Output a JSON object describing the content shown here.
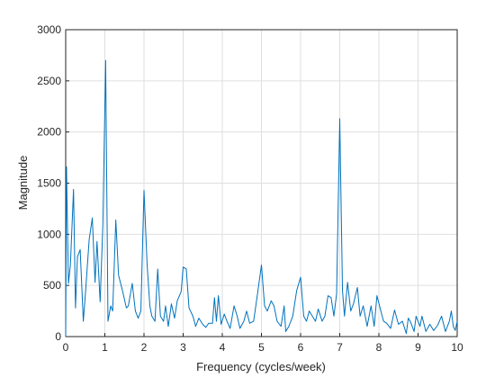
{
  "chart_data": {
    "type": "line",
    "x_label": "Frequency (cycles/week)",
    "y_label": "Magnitude",
    "xlim": [
      0,
      10
    ],
    "ylim": [
      0,
      3000
    ],
    "xticks": [
      0,
      1,
      2,
      3,
      4,
      5,
      6,
      7,
      8,
      9,
      10
    ],
    "yticks": [
      0,
      500,
      1000,
      1500,
      2000,
      2500,
      3000
    ],
    "grid": true,
    "x": [
      0,
      0.02,
      0.07,
      0.12,
      0.2,
      0.25,
      0.3,
      0.37,
      0.45,
      0.5,
      0.6,
      0.68,
      0.75,
      0.8,
      0.88,
      0.95,
      1.02,
      1.08,
      1.15,
      1.2,
      1.28,
      1.35,
      1.45,
      1.55,
      1.6,
      1.7,
      1.78,
      1.85,
      1.92,
      2.0,
      2.08,
      2.15,
      2.2,
      2.28,
      2.35,
      2.42,
      2.5,
      2.55,
      2.62,
      2.7,
      2.78,
      2.85,
      2.95,
      3.0,
      3.08,
      3.15,
      3.25,
      3.32,
      3.4,
      3.5,
      3.58,
      3.65,
      3.7,
      3.75,
      3.8,
      3.85,
      3.9,
      3.97,
      4.05,
      4.12,
      4.2,
      4.3,
      4.38,
      4.45,
      4.55,
      4.62,
      4.7,
      4.8,
      4.9,
      5.0,
      5.08,
      5.15,
      5.25,
      5.32,
      5.4,
      5.5,
      5.58,
      5.62,
      5.7,
      5.8,
      5.9,
      6.0,
      6.08,
      6.15,
      6.22,
      6.3,
      6.38,
      6.45,
      6.55,
      6.62,
      6.7,
      6.78,
      6.85,
      6.92,
      7.0,
      7.07,
      7.12,
      7.2,
      7.28,
      7.35,
      7.45,
      7.52,
      7.6,
      7.7,
      7.8,
      7.88,
      7.95,
      8.05,
      8.12,
      8.2,
      8.3,
      8.4,
      8.5,
      8.6,
      8.7,
      8.75,
      8.8,
      8.9,
      8.95,
      9.05,
      9.1,
      9.2,
      9.3,
      9.4,
      9.5,
      9.6,
      9.7,
      9.8,
      9.85,
      9.9,
      9.95,
      10
    ],
    "series": [
      {
        "color": "#0072bd",
        "values": [
          0,
          1660,
          520,
          700,
          1440,
          280,
          780,
          850,
          150,
          400,
          950,
          1160,
          530,
          930,
          340,
          1100,
          2700,
          150,
          300,
          250,
          1140,
          600,
          450,
          280,
          300,
          520,
          250,
          180,
          250,
          1430,
          700,
          300,
          200,
          150,
          660,
          200,
          150,
          300,
          100,
          320,
          180,
          350,
          440,
          680,
          660,
          280,
          200,
          100,
          180,
          120,
          90,
          130,
          130,
          130,
          380,
          150,
          400,
          120,
          220,
          150,
          80,
          300,
          200,
          80,
          150,
          250,
          130,
          150,
          420,
          700,
          300,
          250,
          350,
          300,
          150,
          100,
          300,
          50,
          100,
          200,
          450,
          580,
          200,
          150,
          250,
          200,
          150,
          270,
          150,
          200,
          400,
          380,
          200,
          420,
          2130,
          450,
          200,
          530,
          250,
          320,
          480,
          200,
          300,
          100,
          300,
          100,
          400,
          250,
          150,
          130,
          80,
          260,
          120,
          150,
          30,
          180,
          150,
          50,
          200,
          100,
          200,
          50,
          120,
          60,
          110,
          200,
          50,
          150,
          250,
          100,
          60,
          150
        ]
      }
    ]
  }
}
